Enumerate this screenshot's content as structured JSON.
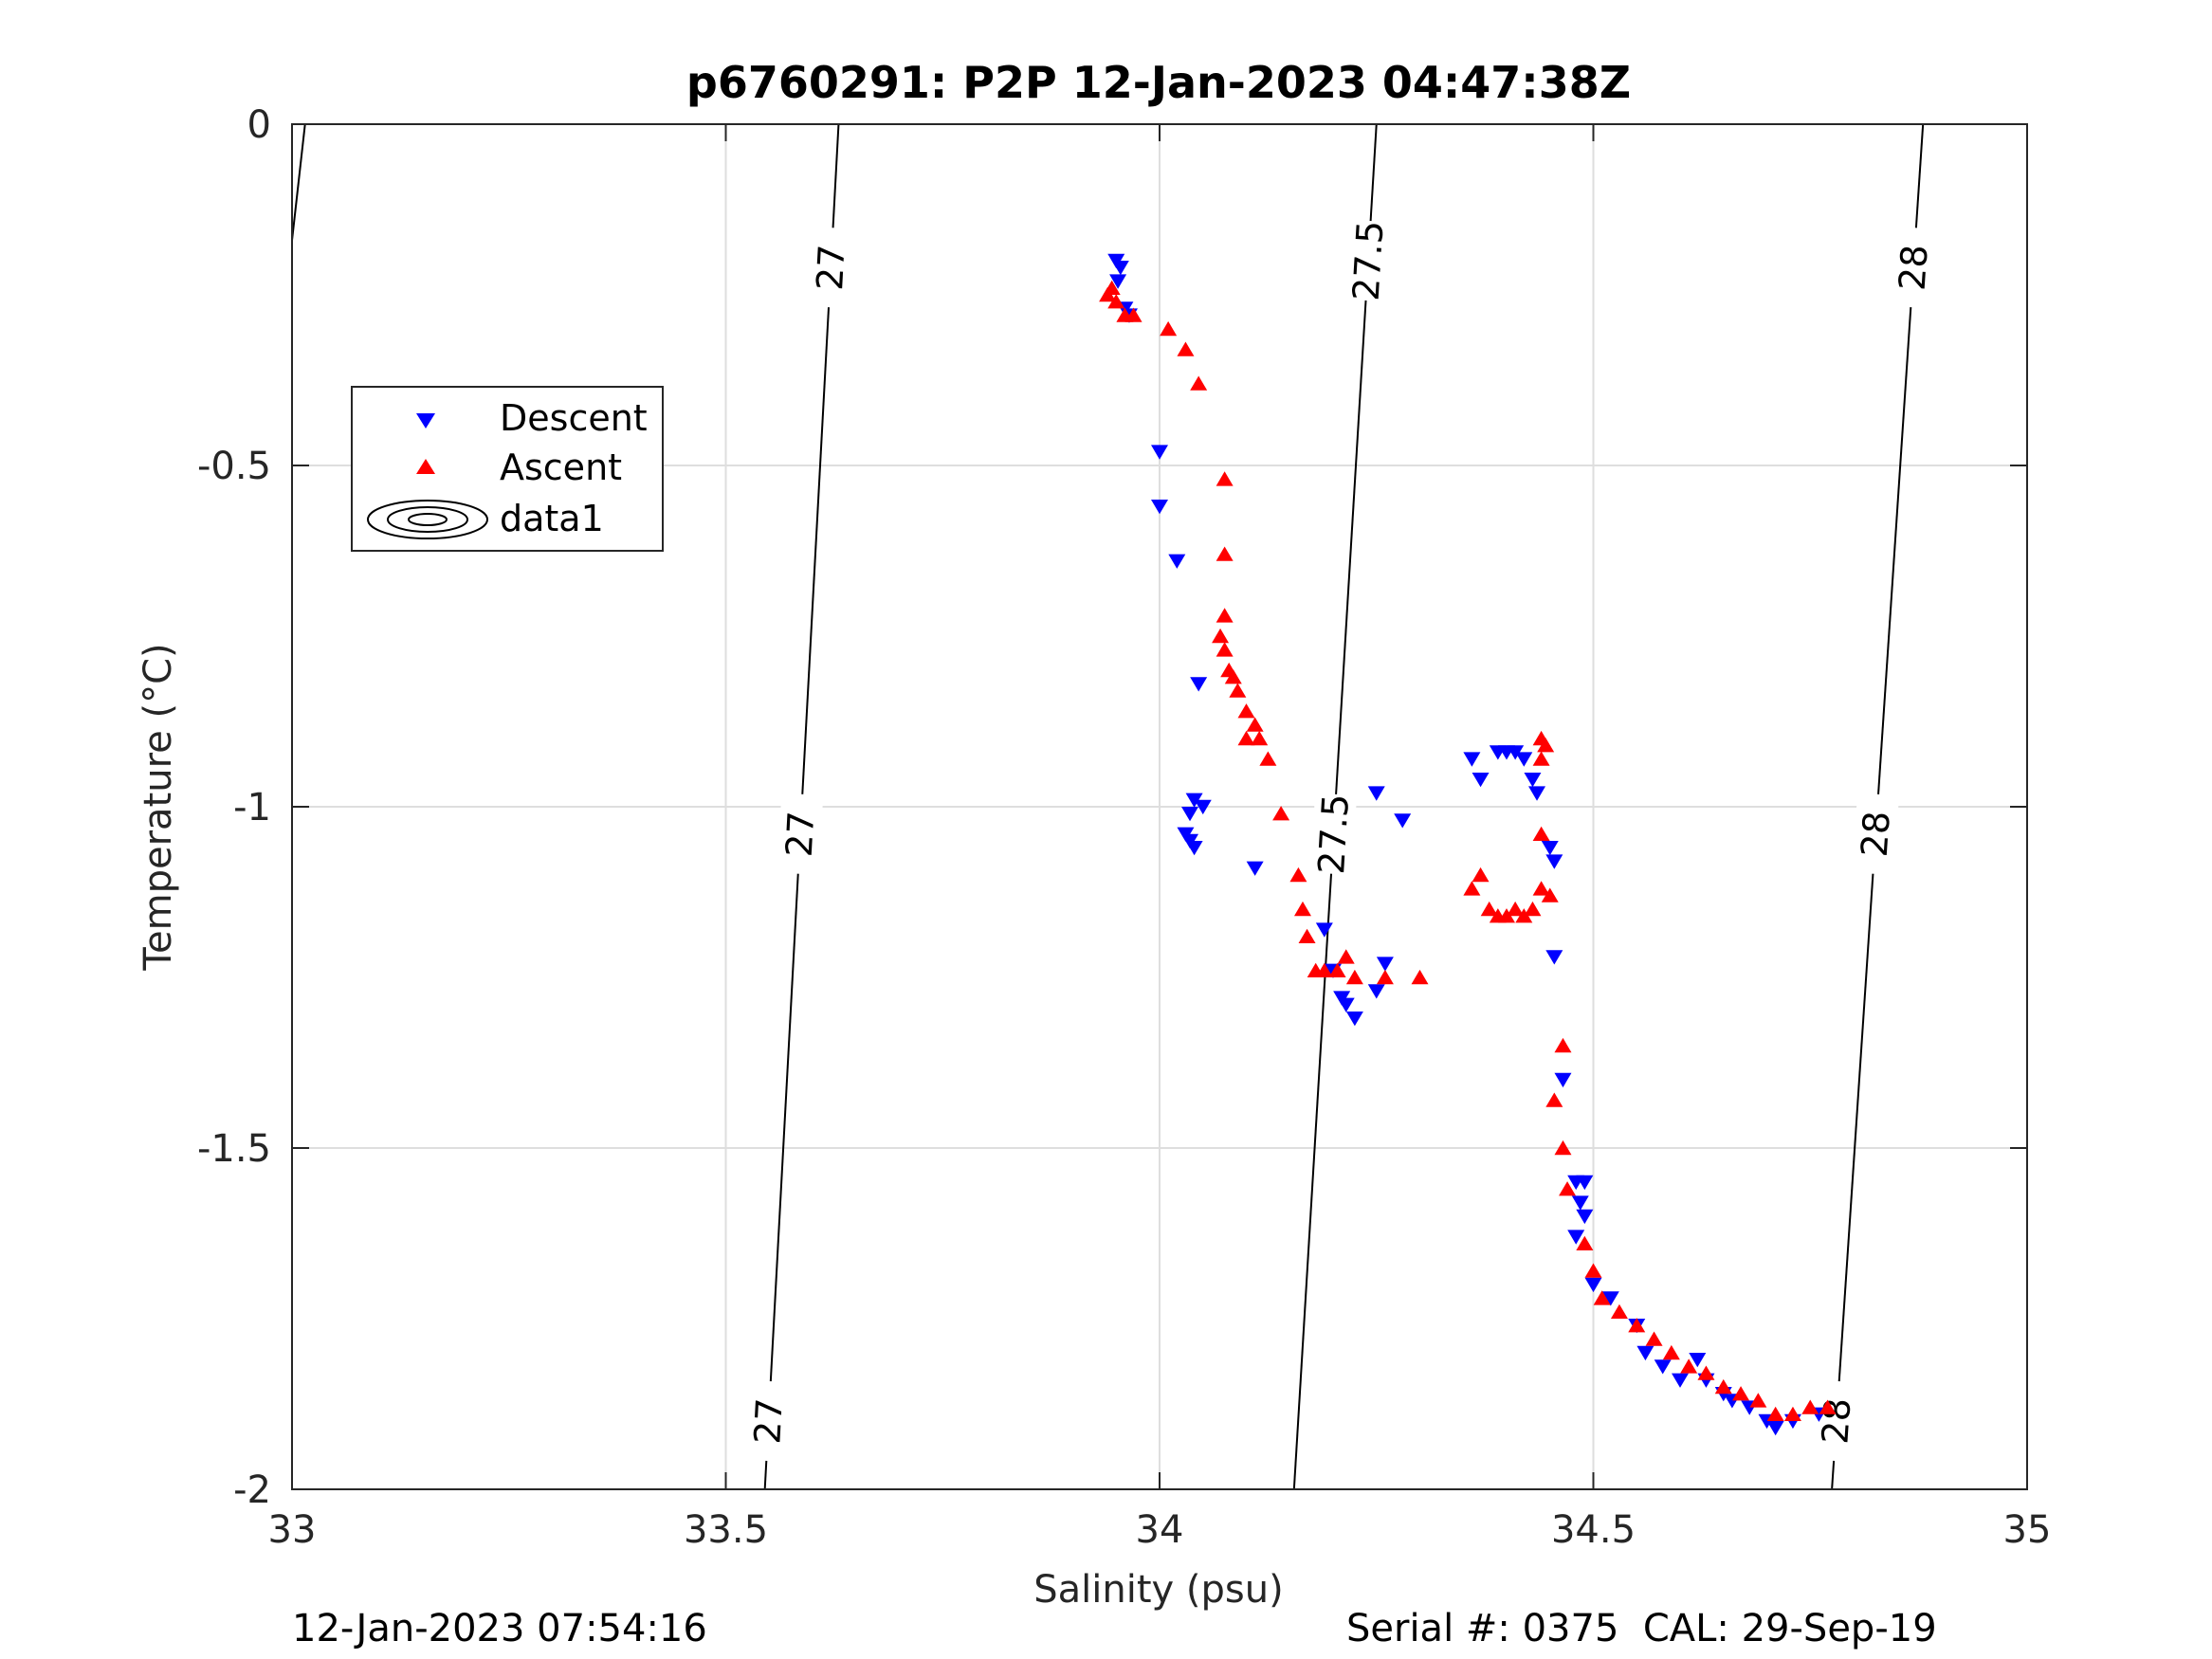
{
  "chart_data": {
    "type": "scatter",
    "title": "p6760291: P2P 12-Jan-2023 04:47:38Z",
    "xlabel": "Salinity (psu)",
    "ylabel": "Temperature (°C)",
    "xlim": [
      33,
      35
    ],
    "ylim": [
      -2,
      0
    ],
    "xticks": [
      "33",
      "33.5",
      "34",
      "34.5",
      "35"
    ],
    "yticks": [
      "0",
      "-0.5",
      "-1",
      "-1.5",
      "-2"
    ],
    "grid": true,
    "legend": {
      "placement": "upper-left",
      "entries": [
        "Descent",
        "Ascent",
        "data1"
      ]
    },
    "isopycnals": [
      {
        "label": "27",
        "top": [
          33.63,
          0
        ],
        "bottom": [
          33.545,
          -2
        ],
        "label_y": [
          -0.21,
          -1.04,
          -1.9
        ]
      },
      {
        "label": "27.5",
        "top": [
          34.25,
          0
        ],
        "bottom": [
          34.155,
          -2
        ],
        "label_y": [
          -0.2,
          -1.04
        ]
      },
      {
        "label": "28",
        "top": [
          34.88,
          0
        ],
        "bottom": [
          34.775,
          -2
        ],
        "label_y": [
          -0.21,
          -1.04,
          -1.9
        ]
      }
    ],
    "series": [
      {
        "name": "Descent",
        "color": "#0000ff",
        "marker": "triangle-down",
        "points": [
          [
            33.95,
            -0.2
          ],
          [
            33.955,
            -0.21
          ],
          [
            33.952,
            -0.23
          ],
          [
            33.96,
            -0.27
          ],
          [
            33.965,
            -0.28
          ],
          [
            34.0,
            -0.48
          ],
          [
            34.0,
            -0.56
          ],
          [
            34.02,
            -0.64
          ],
          [
            34.045,
            -0.82
          ],
          [
            34.04,
            -0.99
          ],
          [
            34.035,
            -1.01
          ],
          [
            34.05,
            -1.0
          ],
          [
            34.03,
            -1.04
          ],
          [
            34.035,
            -1.05
          ],
          [
            34.04,
            -1.06
          ],
          [
            34.11,
            -1.09
          ],
          [
            34.19,
            -1.18
          ],
          [
            34.2,
            -1.24
          ],
          [
            34.21,
            -1.28
          ],
          [
            34.215,
            -1.29
          ],
          [
            34.225,
            -1.31
          ],
          [
            34.25,
            -1.27
          ],
          [
            34.26,
            -1.23
          ],
          [
            34.25,
            -0.98
          ],
          [
            34.28,
            -1.02
          ],
          [
            34.36,
            -0.93
          ],
          [
            34.37,
            -0.96
          ],
          [
            34.39,
            -0.92
          ],
          [
            34.4,
            -0.92
          ],
          [
            34.41,
            -0.92
          ],
          [
            34.42,
            -0.93
          ],
          [
            34.43,
            -0.96
          ],
          [
            34.435,
            -0.98
          ],
          [
            34.45,
            -1.06
          ],
          [
            34.455,
            -1.08
          ],
          [
            34.455,
            -1.22
          ],
          [
            34.465,
            -1.4
          ],
          [
            34.48,
            -1.55
          ],
          [
            34.49,
            -1.55
          ],
          [
            34.485,
            -1.58
          ],
          [
            34.49,
            -1.6
          ],
          [
            34.48,
            -1.63
          ],
          [
            34.5,
            -1.7
          ],
          [
            34.52,
            -1.72
          ],
          [
            34.55,
            -1.76
          ],
          [
            34.56,
            -1.8
          ],
          [
            34.58,
            -1.82
          ],
          [
            34.6,
            -1.84
          ],
          [
            34.62,
            -1.81
          ],
          [
            34.63,
            -1.84
          ],
          [
            34.65,
            -1.86
          ],
          [
            34.66,
            -1.87
          ],
          [
            34.68,
            -1.88
          ],
          [
            34.7,
            -1.9
          ],
          [
            34.71,
            -1.91
          ],
          [
            34.73,
            -1.9
          ],
          [
            34.76,
            -1.89
          ]
        ]
      },
      {
        "name": "Ascent",
        "color": "#ff0000",
        "marker": "triangle-up",
        "points": [
          [
            33.94,
            -0.25
          ],
          [
            33.945,
            -0.24
          ],
          [
            33.95,
            -0.26
          ],
          [
            33.96,
            -0.28
          ],
          [
            33.97,
            -0.28
          ],
          [
            34.01,
            -0.3
          ],
          [
            34.03,
            -0.33
          ],
          [
            34.045,
            -0.38
          ],
          [
            34.075,
            -0.52
          ],
          [
            34.075,
            -0.63
          ],
          [
            34.075,
            -0.72
          ],
          [
            34.07,
            -0.75
          ],
          [
            34.075,
            -0.77
          ],
          [
            34.08,
            -0.8
          ],
          [
            34.085,
            -0.81
          ],
          [
            34.09,
            -0.83
          ],
          [
            34.1,
            -0.86
          ],
          [
            34.11,
            -0.88
          ],
          [
            34.1,
            -0.9
          ],
          [
            34.115,
            -0.9
          ],
          [
            34.125,
            -0.93
          ],
          [
            34.14,
            -1.01
          ],
          [
            34.16,
            -1.1
          ],
          [
            34.165,
            -1.15
          ],
          [
            34.17,
            -1.19
          ],
          [
            34.18,
            -1.24
          ],
          [
            34.19,
            -1.24
          ],
          [
            34.205,
            -1.24
          ],
          [
            34.215,
            -1.22
          ],
          [
            34.225,
            -1.25
          ],
          [
            34.26,
            -1.25
          ],
          [
            34.3,
            -1.25
          ],
          [
            34.36,
            -1.12
          ],
          [
            34.37,
            -1.1
          ],
          [
            34.38,
            -1.15
          ],
          [
            34.39,
            -1.16
          ],
          [
            34.4,
            -1.16
          ],
          [
            34.41,
            -1.15
          ],
          [
            34.42,
            -1.16
          ],
          [
            34.43,
            -1.15
          ],
          [
            34.44,
            -1.12
          ],
          [
            34.45,
            -1.13
          ],
          [
            34.44,
            -1.04
          ],
          [
            34.44,
            -0.93
          ],
          [
            34.445,
            -0.91
          ],
          [
            34.44,
            -0.9
          ],
          [
            34.465,
            -1.35
          ],
          [
            34.455,
            -1.43
          ],
          [
            34.465,
            -1.5
          ],
          [
            34.47,
            -1.56
          ],
          [
            34.49,
            -1.64
          ],
          [
            34.5,
            -1.68
          ],
          [
            34.51,
            -1.72
          ],
          [
            34.53,
            -1.74
          ],
          [
            34.55,
            -1.76
          ],
          [
            34.57,
            -1.78
          ],
          [
            34.59,
            -1.8
          ],
          [
            34.61,
            -1.82
          ],
          [
            34.63,
            -1.83
          ],
          [
            34.65,
            -1.85
          ],
          [
            34.67,
            -1.86
          ],
          [
            34.69,
            -1.87
          ],
          [
            34.71,
            -1.89
          ],
          [
            34.73,
            -1.89
          ],
          [
            34.75,
            -1.88
          ],
          [
            34.77,
            -1.88
          ]
        ]
      }
    ]
  },
  "footer": {
    "timestamp": "12-Jan-2023 07:54:16",
    "serial": "Serial #: 0375  CAL: 29-Sep-19"
  }
}
